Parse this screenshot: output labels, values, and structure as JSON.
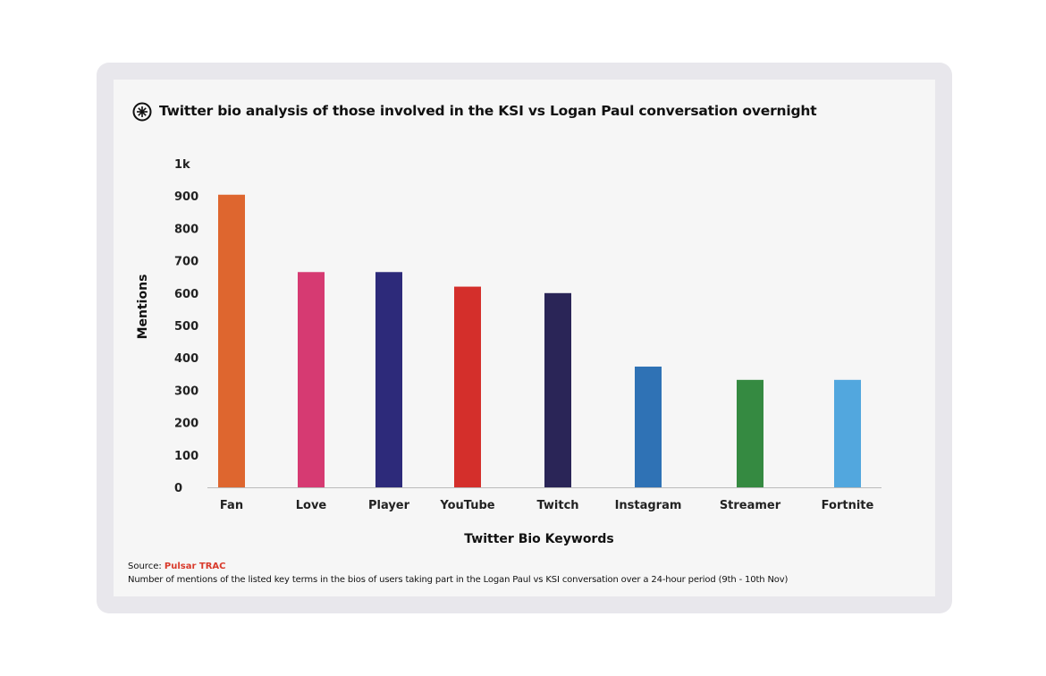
{
  "title": "Twitter bio analysis of those involved in the KSI vs Logan Paul conversation overnight",
  "title_icon": "pulsar-logo-icon",
  "source_label": "Source:",
  "source_name": "Pulsar TRAC",
  "note": "Number of mentions of the listed key terms in the bios of users taking part in the Logan Paul vs KSI conversation over a 24-hour period (9th - 10th Nov)",
  "chart_data": {
    "type": "bar",
    "title": "Twitter bio analysis of those involved in the KSI vs Logan Paul conversation overnight",
    "xlabel": "Twitter Bio Keywords",
    "ylabel": "Mentions",
    "ylim": [
      0,
      1000
    ],
    "yticks": [
      "0",
      "100",
      "200",
      "300",
      "400",
      "500",
      "600",
      "700",
      "800",
      "900",
      "1k"
    ],
    "categories": [
      "Fan",
      "Love",
      "Player",
      "YouTube",
      "Twitch",
      "Instagram",
      "Streamer",
      "Fortnite"
    ],
    "values": [
      904,
      665,
      665,
      620,
      600,
      373,
      332,
      332
    ],
    "colors": [
      "#de662f",
      "#d63a72",
      "#2d2a7a",
      "#d42f2b",
      "#2a2557",
      "#2f72b5",
      "#358a41",
      "#52a7de"
    ],
    "grid": false,
    "legend": "none"
  }
}
